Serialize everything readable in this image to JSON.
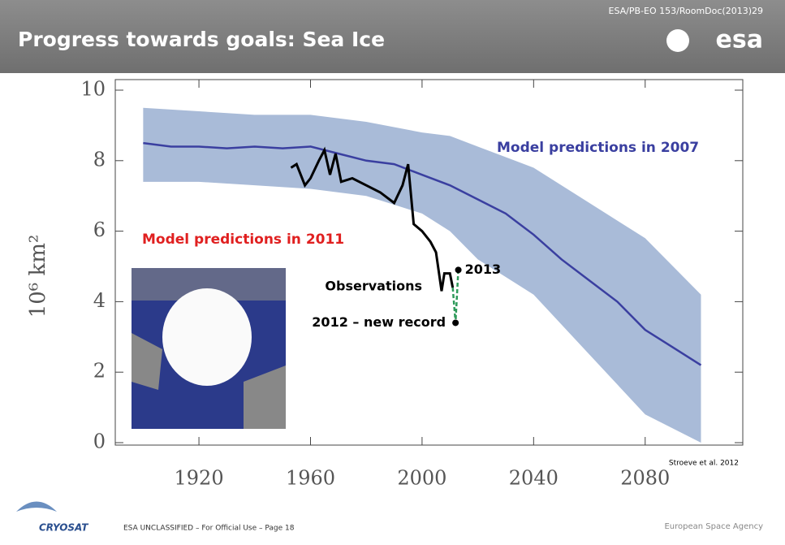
{
  "header": {
    "title": "Progress towards goals: Sea Ice",
    "doc_ref": "ESA/PB-EO 153/RoomDoc(2013)29",
    "logo": "esa"
  },
  "footer": {
    "mission": "CRYOSAT",
    "classification": "ESA UNCLASSIFIED – For Official Use – Page 18",
    "agency": "European Space Agency"
  },
  "chart_data": {
    "type": "line",
    "y_label": "10⁶ km²",
    "source": "Stroeve et al. 2012",
    "xlim": [
      1890,
      2115
    ],
    "xticks": [
      1920,
      1960,
      2000,
      2040,
      2080
    ],
    "ylim": [
      0,
      10
    ],
    "yticks": [
      0,
      2,
      4,
      6,
      8,
      10
    ],
    "grid": false,
    "band": {
      "color": "#a9bbd8",
      "x": [
        1900,
        1920,
        1940,
        1960,
        1980,
        2000,
        2010,
        2020,
        2040,
        2060,
        2080,
        2100
      ],
      "lower": [
        7.4,
        7.4,
        7.3,
        7.2,
        7.0,
        6.5,
        6.0,
        5.2,
        4.2,
        2.5,
        0.8,
        0
      ],
      "upper": [
        9.5,
        9.4,
        9.3,
        9.3,
        9.1,
        8.8,
        8.7,
        8.4,
        7.8,
        6.8,
        5.8,
        4.2
      ]
    },
    "series": [
      {
        "name": "Model predictions in 2007",
        "color": "#3a3fa0",
        "x": [
          1900,
          1910,
          1920,
          1930,
          1940,
          1950,
          1960,
          1970,
          1980,
          1990,
          2000,
          2010,
          2020,
          2030,
          2040,
          2050,
          2060,
          2070,
          2080,
          2090,
          2100
        ],
        "values": [
          8.5,
          8.4,
          8.4,
          8.35,
          8.4,
          8.35,
          8.4,
          8.2,
          8.0,
          7.9,
          7.6,
          7.3,
          6.9,
          6.5,
          5.9,
          5.2,
          4.6,
          4.0,
          3.2,
          2.7,
          2.2
        ]
      },
      {
        "name": "Observations",
        "color": "#000000",
        "x": [
          1953,
          1955,
          1958,
          1960,
          1963,
          1965,
          1967,
          1969,
          1971,
          1975,
          1980,
          1985,
          1990,
          1993,
          1995,
          1997,
          2000,
          2003,
          2005,
          2007,
          2008,
          2010,
          2011
        ],
        "values": [
          7.8,
          7.9,
          7.3,
          7.5,
          8.0,
          8.3,
          7.6,
          8.2,
          7.4,
          7.5,
          7.3,
          7.1,
          6.8,
          7.3,
          7.9,
          6.2,
          6.0,
          5.7,
          5.4,
          4.3,
          4.8,
          4.8,
          4.4
        ]
      }
    ],
    "points": [
      {
        "label": "2012 – new record",
        "x": 2012,
        "value": 3.4
      },
      {
        "label": "2013",
        "x": 2013,
        "value": 4.9
      }
    ],
    "points_color": "#2e9a5a",
    "annotations": [
      {
        "text": "Model predictions in 2007",
        "color": "#3a3fa0"
      },
      {
        "text": "Model predictions in 2011",
        "color": "#e02020"
      }
    ]
  }
}
